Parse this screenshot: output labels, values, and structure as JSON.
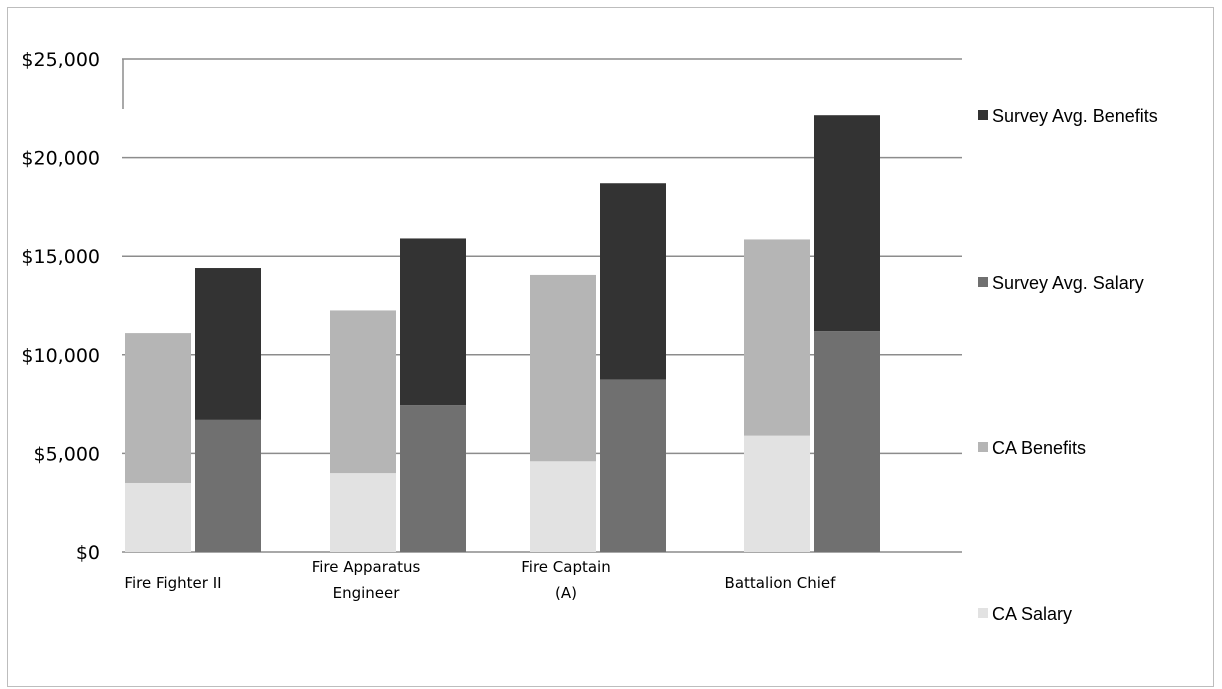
{
  "chart_data": {
    "type": "bar",
    "stacked": true,
    "categories": [
      [
        "Fire Fighter II"
      ],
      [
        "Fire Apparatus",
        "Engineer"
      ],
      [
        "Fire Captain",
        "(A)"
      ],
      [
        "Battalion Chief"
      ]
    ],
    "stacks": [
      {
        "segments": [
          {
            "name": "CA Salary",
            "values": [
              3500,
              4000,
              4600,
              5900
            ]
          },
          {
            "name": "CA Benefits",
            "values": [
              7600,
              8250,
              9450,
              9950
            ]
          }
        ]
      },
      {
        "segments": [
          {
            "name": "Survey Avg. Salary",
            "values": [
              6700,
              7450,
              8750,
              11200
            ]
          },
          {
            "name": "Survey Avg. Benefits",
            "values": [
              7700,
              8450,
              9950,
              10950
            ]
          }
        ]
      }
    ],
    "ylim": [
      0,
      25000
    ],
    "yticks": [
      0,
      5000,
      10000,
      15000,
      20000,
      25000
    ],
    "ytick_labels": [
      "$0",
      "$5,000",
      "$10,000",
      "$15,000",
      "$20,000",
      "$25,000"
    ],
    "grid": true,
    "legend_position": "right",
    "legend": [
      "Survey Avg. Benefits",
      "Survey Avg. Salary",
      "CA Benefits",
      "CA Salary"
    ],
    "colors": {
      "CA Salary": "#e2e2e2",
      "CA Benefits": "#b5b5b5",
      "Survey Avg. Salary": "#707070",
      "Survey Avg. Benefits": "#333333"
    },
    "title": "",
    "xlabel": "",
    "ylabel": ""
  }
}
